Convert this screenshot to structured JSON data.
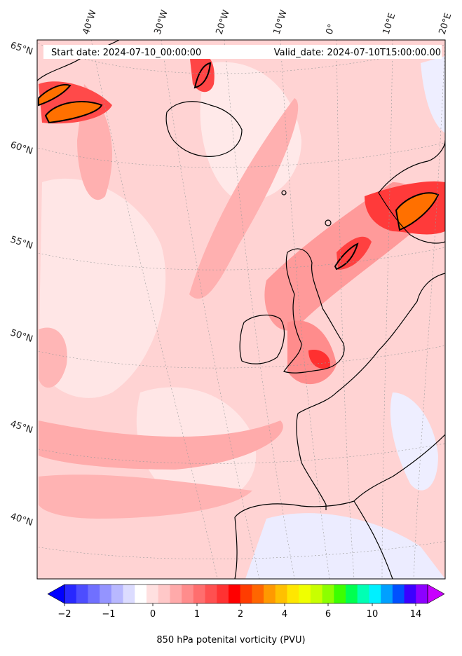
{
  "map": {
    "start_date_label": "Start date: 2024-07-10_00:00:00",
    "valid_date_label": "Valid_date: 2024-07-10T15:00:00.00",
    "longitude_labels": [
      "40°W",
      "30°W",
      "20°W",
      "10°W",
      "0°",
      "10°E",
      "20°E"
    ],
    "latitude_labels": [
      "65°N",
      "60°N",
      "55°N",
      "50°N",
      "45°N",
      "40°N"
    ],
    "colors": {
      "background_low": "#ffe2e2",
      "medium": "#ff9c9c",
      "high": "#ff3030",
      "extreme": "#ff7a00",
      "negative": "#e9e9ff",
      "coastline": "#000000"
    }
  },
  "colorbar": {
    "label": "850 hPa potenital vorticity (PVU)",
    "tick_labels": [
      "−2",
      "−1",
      "0",
      "1",
      "2",
      "4",
      "6",
      "10",
      "14"
    ],
    "colors": [
      "#0000ff",
      "#2828ff",
      "#4d4dff",
      "#7070ff",
      "#9494ff",
      "#b8b8ff",
      "#dcdcff",
      "#ffffff",
      "#ffe0e0",
      "#ffc8c8",
      "#ffaaaa",
      "#ff8c8c",
      "#ff6e6e",
      "#ff5050",
      "#ff3232",
      "#ff0000",
      "#ff3c00",
      "#ff6600",
      "#ff9900",
      "#ffc000",
      "#ffe600",
      "#f0ff00",
      "#c8ff00",
      "#8cff00",
      "#3cff00",
      "#00ff50",
      "#00ffb4",
      "#00f0ff",
      "#00a0ff",
      "#0050ff",
      "#3c00ff",
      "#8c00ff",
      "#c800ff"
    ]
  }
}
